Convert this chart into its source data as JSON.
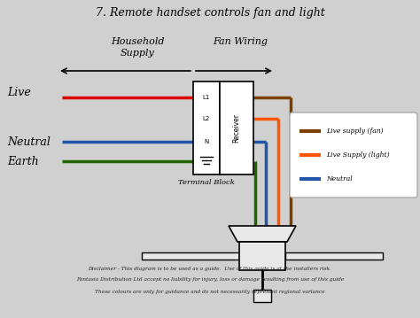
{
  "title": "7. Remote handset controls fan and light",
  "bg_color": "#d0d0d0",
  "label_live": "Live",
  "label_neutral": "Neutral",
  "label_earth": "Earth",
  "label_household": "Household",
  "label_supply": "Supply",
  "label_fan_wiring": "Fan Wiring",
  "label_terminal": "Terminal Block",
  "label_receiver": "Receiver",
  "legend_items": [
    {
      "label": "Live supply (fan)",
      "color": "#7B3F00"
    },
    {
      "label": "Live Supply (light)",
      "color": "#FF5500"
    },
    {
      "label": "Neutral",
      "color": "#2255AA"
    }
  ],
  "disclaimer1": "Disclaimer - This diagram is to be used as a guide.  Use of this guide is at the installers risk.",
  "disclaimer2": "Fantasia Distribution Ltd accept no liability for injury, loss or damage resulting from use of this guide",
  "disclaimer3": "These colours are only for guidance and do not necessarily represent regional variance",
  "wire_red_color": "#DD0000",
  "wire_blue_color": "#2255AA",
  "wire_green_color": "#226600",
  "wire_brown_color": "#7B3F00",
  "wire_orange_color": "#FF5500",
  "wire_blue2_color": "#2255AA"
}
